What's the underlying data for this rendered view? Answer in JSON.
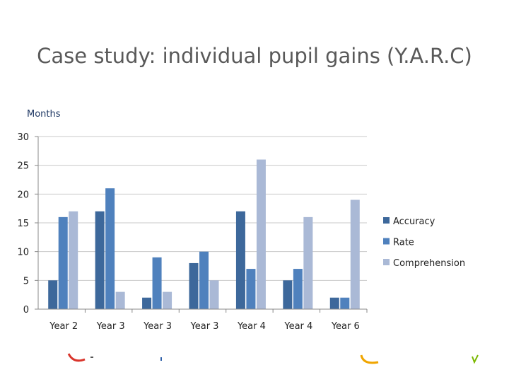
{
  "slide": {
    "title": "Case study: individual pupil gains (Y.A.R.C)"
  },
  "colors": {
    "accuracy": "#3d689b",
    "rate": "#4f81bd",
    "comprehension": "#aab9d6",
    "gridline": "#c9c9c9",
    "axis": "#888888"
  },
  "chart_data": {
    "type": "bar",
    "title": "",
    "xlabel": "",
    "ylabel": "Months",
    "ylim": [
      0,
      30
    ],
    "yticks": [
      0,
      5,
      10,
      15,
      20,
      25,
      30
    ],
    "grid": true,
    "legend_position": "right",
    "categories": [
      "Year 2",
      "Year 3",
      "Year 3",
      "Year 3",
      "Year 4",
      "Year 4",
      "Year 6"
    ],
    "series": [
      {
        "name": "Accuracy",
        "values": [
          5,
          17,
          2,
          8,
          17,
          5,
          2
        ]
      },
      {
        "name": "Rate",
        "values": [
          16,
          21,
          9,
          10,
          7,
          7,
          2
        ]
      },
      {
        "name": "Comprehension",
        "values": [
          17,
          3,
          3,
          5,
          26,
          16,
          19
        ]
      }
    ]
  }
}
